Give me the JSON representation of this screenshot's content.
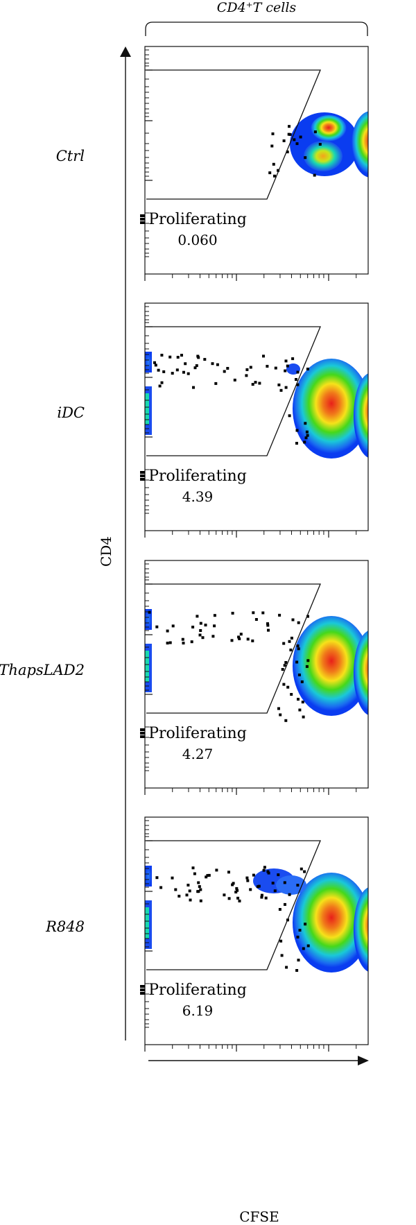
{
  "chart_data": {
    "type": "scatter",
    "subtype": "flow-cytometry-density-plot",
    "title": "CD4⁺T cells",
    "xlabel": "CFSE",
    "ylabel": "CD4",
    "gate_label": "Proliferating",
    "panels": [
      {
        "name": "Ctrl",
        "proliferating": "0.060"
      },
      {
        "name": "iDC",
        "proliferating": "4.39"
      },
      {
        "name": "ThapsLAD2",
        "proliferating": "4.27"
      },
      {
        "name": "R848",
        "proliferating": "6.19"
      }
    ],
    "colors": {
      "high": "#e8201a",
      "mid": "#8ee01a",
      "low": "#0a3cf0",
      "gate": "#111111",
      "event": "#000000"
    }
  }
}
